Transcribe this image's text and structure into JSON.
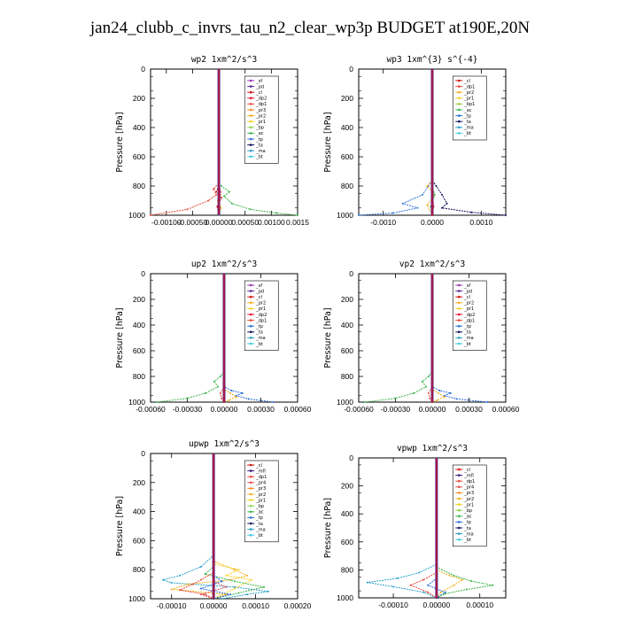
{
  "title": "jan24_clubb_c_invrs_tau_n2_clear_wp3p  BUDGET at190E,20N",
  "series_colors": {
    "sf": "#9b30b0",
    "pd": "#5a2a9a",
    "cl": "#d01010",
    "dp2": "#e01030",
    "dp1": "#e84a3a",
    "pr3": "#f58a20",
    "pr2": "#f0b020",
    "pr1": "#f5d020",
    "bp1": "#9acd32",
    "bp": "#8fd14f",
    "ac": "#3cb44b",
    "tp": "#2a6fdb",
    "ta": "#101060",
    "ma": "#2aa0c8",
    "bt": "#40c8e0",
    "mfl": "#3a1a80",
    "pr4": "#e05050"
  },
  "chart_data": [
    {
      "type": "line",
      "title": "wp2   1xm^2/s^3",
      "ylabel": "Pressure  [hPa]",
      "ylim": [
        1000,
        0
      ],
      "xlim": [
        -0.0013,
        0.0015
      ],
      "xticks": [
        -0.001,
        -0.0005,
        0,
        0.0005,
        0.001,
        0.0015
      ],
      "xtick_labels": [
        "-0.00100",
        "-0.00050",
        "0.00000",
        "0.00050",
        "0.00100",
        "0.0015"
      ],
      "yticks": [
        0,
        200,
        400,
        600,
        800,
        1000
      ],
      "legend": [
        "_sf",
        "_pd",
        "_cl",
        "_dp2",
        "_dp1",
        "_pr3",
        "_pr2",
        "_pr1",
        "_bp",
        "_ac",
        "_tp",
        "_ta",
        "_ma",
        "_bt"
      ],
      "series": [
        {
          "key": "ac",
          "x": [
            0,
            0,
            5e-05,
            0.0002,
            0.0001,
            0.00025,
            0.0006,
            0.0011,
            0.0015
          ],
          "y": [
            0,
            780,
            800,
            840,
            870,
            920,
            960,
            985,
            1000
          ]
        },
        {
          "key": "dp1",
          "x": [
            0,
            0,
            -0.0001,
            -5e-05,
            -0.0002,
            -0.0006,
            -0.0013
          ],
          "y": [
            0,
            780,
            820,
            860,
            900,
            960,
            1000
          ]
        },
        {
          "key": "cl",
          "x": [
            0,
            0,
            -5e-05,
            5e-05,
            -3e-05,
            0
          ],
          "y": [
            0,
            800,
            840,
            880,
            940,
            1000
          ]
        },
        {
          "key": "pr2",
          "x": [
            0,
            0,
            3e-05,
            -2e-05,
            4e-05,
            0
          ],
          "y": [
            0,
            820,
            860,
            900,
            950,
            1000
          ]
        },
        {
          "key": "dp2",
          "x": [
            0,
            0,
            3e-05,
            1e-05,
            0
          ],
          "y": [
            0,
            760,
            840,
            920,
            1000
          ]
        },
        {
          "key": "pd",
          "x": [
            0,
            0,
            1e-05,
            0
          ],
          "y": [
            0,
            800,
            900,
            1000
          ]
        },
        {
          "key": "bt",
          "x": [
            0,
            0
          ],
          "y": [
            0,
            1000
          ]
        }
      ]
    },
    {
      "type": "line",
      "title": "wp3   1xm^{3} s^{-4}",
      "ylabel": "Pressure  [hPa]",
      "ylim": [
        1000,
        0
      ],
      "xlim": [
        -0.0015,
        0.0015
      ],
      "xticks": [
        -0.001,
        0,
        0.001
      ],
      "xtick_labels": [
        "-0.0010",
        "0.0000",
        "0.0010"
      ],
      "yticks": [
        0,
        200,
        400,
        600,
        800,
        1000
      ],
      "legend": [
        "_cl",
        "_dp1",
        "_pr2",
        "_pr1",
        "_bp1",
        "_ac",
        "_tp",
        "_ta",
        "_ma",
        "_bt"
      ],
      "series": [
        {
          "key": "ta",
          "x": [
            0,
            0,
            8e-05,
            0.0002,
            0.0003,
            0.0002,
            0.0008,
            0.0015
          ],
          "y": [
            0,
            760,
            800,
            860,
            920,
            950,
            980,
            1000
          ]
        },
        {
          "key": "tp",
          "x": [
            0,
            0,
            -8e-05,
            -0.0002,
            -0.0006,
            -0.0003,
            -0.0008,
            -0.0015
          ],
          "y": [
            0,
            760,
            800,
            860,
            920,
            950,
            985,
            1000
          ]
        },
        {
          "key": "pr2",
          "x": [
            0,
            0,
            -0.0001,
            5e-05,
            -0.0001,
            0
          ],
          "y": [
            0,
            760,
            800,
            860,
            930,
            1000
          ]
        },
        {
          "key": "ac",
          "x": [
            0,
            0,
            5e-05,
            -3e-05,
            0
          ],
          "y": [
            0,
            800,
            860,
            940,
            1000
          ]
        },
        {
          "key": "dp1",
          "x": [
            0,
            0,
            3e-05,
            0
          ],
          "y": [
            0,
            840,
            940,
            1000
          ]
        },
        {
          "key": "cl",
          "x": [
            0,
            0
          ],
          "y": [
            0,
            1000
          ]
        }
      ]
    },
    {
      "type": "line",
      "title": "up2   1xm^2/s^3",
      "ylabel": "Pressure  [hPa]",
      "ylim": [
        1000,
        0
      ],
      "xlim": [
        -0.0006,
        0.0006
      ],
      "xticks": [
        -0.0006,
        -0.0003,
        0,
        0.0003,
        0.0006
      ],
      "xtick_labels": [
        "-0.00060",
        "-0.00030",
        "0.00000",
        "0.00030",
        "0.00060"
      ],
      "yticks": [
        0,
        200,
        400,
        600,
        800,
        1000
      ],
      "legend": [
        "_sf",
        "_pd",
        "_cl",
        "_pr2",
        "_pr1",
        "_dp2",
        "_dp1",
        "_tp",
        "_ta",
        "_ma",
        "_bt"
      ],
      "series": [
        {
          "key": "ac",
          "x": [
            0,
            0,
            -3e-05,
            -8e-05,
            -5e-05,
            -0.00015,
            -0.0003,
            -0.00055
          ],
          "y": [
            0,
            760,
            800,
            840,
            880,
            930,
            970,
            1000
          ]
        },
        {
          "key": "tp",
          "x": [
            0,
            0,
            6e-05,
            0.00015,
            0.0001,
            0.0002,
            0.0004
          ],
          "y": [
            0,
            880,
            910,
            930,
            950,
            975,
            1000
          ]
        },
        {
          "key": "pr2",
          "x": [
            0,
            0,
            5e-05,
            0.0001,
            4e-05,
            0
          ],
          "y": [
            0,
            900,
            930,
            960,
            985,
            1000
          ]
        },
        {
          "key": "dp1",
          "x": [
            0,
            0,
            -3e-05,
            -2e-05,
            0
          ],
          "y": [
            0,
            880,
            930,
            970,
            1000
          ]
        },
        {
          "key": "cl",
          "x": [
            0,
            0
          ],
          "y": [
            0,
            1000
          ]
        }
      ]
    },
    {
      "type": "line",
      "title": "vp2   1xm^2/s^3",
      "ylabel": "Pressure  [hPa]",
      "ylim": [
        1000,
        0
      ],
      "xlim": [
        -0.0006,
        0.0006
      ],
      "xticks": [
        -0.0006,
        -0.0003,
        0,
        0.0003,
        0.0006
      ],
      "xtick_labels": [
        "-0.00060",
        "-0.00030",
        "0.00000",
        "0.00030",
        "0.00060"
      ],
      "yticks": [
        0,
        200,
        400,
        600,
        800,
        1000
      ],
      "legend": [
        "_sf",
        "_pd",
        "_cl",
        "_pr2",
        "_pr1",
        "_dp2",
        "_dp1",
        "_tp",
        "_ta",
        "_ma",
        "_bt"
      ],
      "series": [
        {
          "key": "ac",
          "x": [
            0,
            0,
            -3e-05,
            -8e-05,
            -5e-05,
            -0.00015,
            -0.0003,
            -0.00055
          ],
          "y": [
            0,
            760,
            800,
            840,
            880,
            930,
            970,
            1000
          ]
        },
        {
          "key": "tp",
          "x": [
            0,
            0,
            6e-05,
            0.00015,
            0.0001,
            0.0002,
            0.00045
          ],
          "y": [
            0,
            880,
            910,
            930,
            950,
            975,
            1000
          ]
        },
        {
          "key": "pr2",
          "x": [
            0,
            0,
            5e-05,
            0.0001,
            4e-05,
            0
          ],
          "y": [
            0,
            900,
            930,
            960,
            985,
            1000
          ]
        },
        {
          "key": "dp1",
          "x": [
            0,
            0,
            -3e-05,
            -2e-05,
            0
          ],
          "y": [
            0,
            880,
            930,
            970,
            1000
          ]
        },
        {
          "key": "cl",
          "x": [
            0,
            0
          ],
          "y": [
            0,
            1000
          ]
        }
      ]
    },
    {
      "type": "line",
      "title": "upwp   1xm^2/s^3",
      "ylabel": "Pressure  [hPa]",
      "ylim": [
        1000,
        0
      ],
      "xlim": [
        -0.00015,
        0.0002
      ],
      "xticks": [
        -0.0001,
        0,
        0.0001,
        0.0002
      ],
      "xtick_labels": [
        "-0.00010",
        "0.00000",
        "0.00010",
        "0.00020"
      ],
      "yticks": [
        0,
        200,
        400,
        600,
        800,
        1000
      ],
      "legend": [
        "_cl",
        "_mfl",
        "_dp1",
        "_pr4",
        "_pr3",
        "_pr2",
        "_pr1",
        "_bp",
        "_ac",
        "_tp",
        "_ta",
        "_ma",
        "_bt"
      ],
      "series": [
        {
          "key": "ma",
          "x": [
            0,
            0,
            -3e-05,
            -8e-05,
            -0.00012,
            -0.0001,
            5e-05,
            0.00013,
            8e-05,
            2e-05
          ],
          "y": [
            0,
            700,
            780,
            840,
            870,
            890,
            920,
            950,
            970,
            1000
          ]
        },
        {
          "key": "pr2",
          "x": [
            0,
            0,
            5e-05,
            8e-05,
            4e-05,
            -6e-05,
            -0.0001,
            3e-05,
            0
          ],
          "y": [
            0,
            740,
            800,
            840,
            870,
            900,
            935,
            970,
            1000
          ]
        },
        {
          "key": "pr1",
          "x": [
            0,
            0,
            6e-05,
            3e-05,
            9e-05,
            5e-05,
            0
          ],
          "y": [
            0,
            760,
            800,
            840,
            870,
            930,
            1000
          ]
        },
        {
          "key": "ac",
          "x": [
            0,
            0,
            -2e-05,
            5e-05,
            0.00012,
            6e-05,
            0
          ],
          "y": [
            0,
            780,
            830,
            880,
            920,
            960,
            1000
          ]
        },
        {
          "key": "dp1",
          "x": [
            0,
            0,
            -3e-05,
            -5e-05,
            -8e-05,
            -2e-05,
            0
          ],
          "y": [
            0,
            820,
            870,
            900,
            940,
            970,
            1000
          ]
        },
        {
          "key": "tp",
          "x": [
            0,
            0,
            2e-05,
            -3e-05,
            4e-05,
            0
          ],
          "y": [
            0,
            840,
            880,
            930,
            970,
            1000
          ]
        },
        {
          "key": "pr4",
          "x": [
            0,
            0,
            3e-05,
            -3e-05,
            0
          ],
          "y": [
            0,
            880,
            920,
            970,
            1000
          ]
        },
        {
          "key": "mfl",
          "x": [
            0,
            0
          ],
          "y": [
            0,
            1000
          ]
        }
      ]
    },
    {
      "type": "line",
      "title": "vpwp   1xm^2/s^3",
      "ylabel": "Pressure  [hPa]",
      "ylim": [
        1000,
        0
      ],
      "xlim": [
        -0.00018,
        0.00016
      ],
      "xticks": [
        -0.0001,
        0,
        0.0001
      ],
      "xtick_labels": [
        "-0.00010",
        "0.00000",
        "0.00010"
      ],
      "yticks": [
        0,
        200,
        400,
        600,
        800,
        1000
      ],
      "legend": [
        "_cl",
        "_mfl",
        "_dp1",
        "_pr4",
        "_pr3",
        "_pr2",
        "_pr1",
        "_bp",
        "_ac",
        "_tp",
        "_ta",
        "_ma",
        "_bt"
      ],
      "series": [
        {
          "key": "ma",
          "x": [
            0,
            0,
            -4e-05,
            -9e-05,
            -0.00016,
            -0.0001,
            -3e-05,
            0
          ],
          "y": [
            0,
            760,
            820,
            860,
            890,
            920,
            960,
            1000
          ]
        },
        {
          "key": "ac",
          "x": [
            0,
            0,
            4e-05,
            8e-05,
            0.00013,
            7e-05,
            2e-05,
            0
          ],
          "y": [
            0,
            780,
            840,
            880,
            910,
            940,
            970,
            1000
          ]
        },
        {
          "key": "pr2",
          "x": [
            0,
            0,
            3e-05,
            6e-05,
            4e-05,
            1e-05,
            0
          ],
          "y": [
            0,
            800,
            840,
            870,
            910,
            960,
            1000
          ]
        },
        {
          "key": "dp1",
          "x": [
            0,
            0,
            -3e-05,
            -6e-05,
            -2e-05,
            0
          ],
          "y": [
            0,
            820,
            870,
            910,
            960,
            1000
          ]
        },
        {
          "key": "tp",
          "x": [
            0,
            0,
            -2e-05,
            2e-05,
            0
          ],
          "y": [
            0,
            860,
            910,
            960,
            1000
          ]
        },
        {
          "key": "mfl",
          "x": [
            0,
            0
          ],
          "y": [
            0,
            1000
          ]
        }
      ]
    }
  ]
}
